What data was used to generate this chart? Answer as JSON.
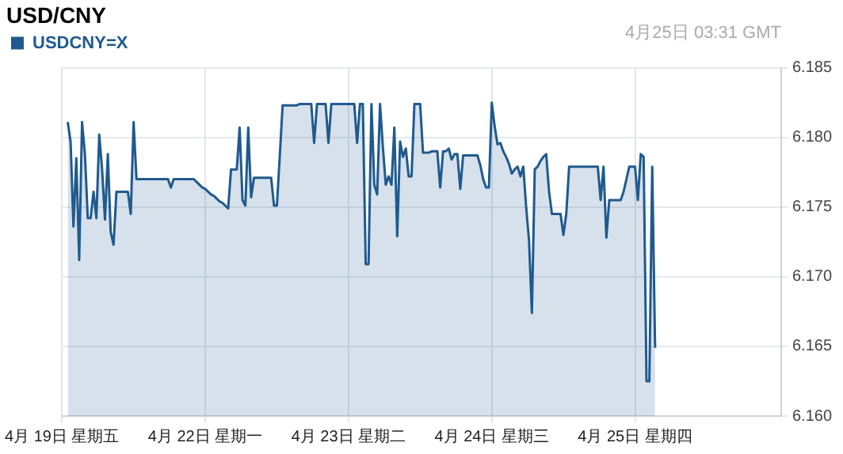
{
  "chart_data": {
    "type": "area",
    "title": "USD/CNY",
    "annotations": [
      "4月25日 03:31 GMT"
    ],
    "categories": [
      "4月 19日 星期五",
      null,
      null,
      null,
      null,
      null,
      null,
      null,
      null,
      null,
      null,
      null,
      null,
      null,
      null,
      null,
      null,
      null,
      null,
      null,
      null,
      null,
      null,
      null,
      null,
      null,
      null,
      null,
      null,
      null,
      null,
      null,
      null,
      null,
      null,
      null,
      null,
      null,
      null,
      null,
      null,
      null,
      null,
      null,
      null,
      null,
      null,
      null,
      null,
      null,
      "4月 22日 星期一",
      null,
      null,
      null,
      null,
      null,
      null,
      null,
      null,
      null,
      null,
      null,
      null,
      null,
      null,
      null,
      null,
      null,
      null,
      null,
      null,
      null,
      null,
      null,
      null,
      null,
      null,
      null,
      null,
      null,
      null,
      null,
      null,
      null,
      null,
      null,
      null,
      null,
      null,
      null,
      null,
      null,
      null,
      null,
      null,
      null,
      null,
      null,
      null,
      null,
      "4月 23日 星期二",
      null,
      null,
      null,
      null,
      null,
      null,
      null,
      null,
      null,
      null,
      null,
      null,
      null,
      null,
      null,
      null,
      null,
      null,
      null,
      null,
      null,
      null,
      null,
      null,
      null,
      null,
      null,
      null,
      null,
      null,
      null,
      null,
      null,
      null,
      null,
      null,
      null,
      null,
      null,
      null,
      null,
      null,
      null,
      null,
      null,
      null,
      null,
      null,
      null,
      "4月 24日 星期三",
      null,
      null,
      null,
      null,
      null,
      null,
      null,
      null,
      null,
      null,
      null,
      null,
      null,
      null,
      null,
      null,
      null,
      null,
      null,
      null,
      null,
      null,
      null,
      null,
      null,
      null,
      null,
      null,
      null,
      null,
      null,
      null,
      null,
      null,
      null,
      null,
      null,
      null,
      null,
      null,
      null,
      null,
      null,
      null,
      null,
      null,
      null,
      null,
      null,
      "4月 25日 星期四",
      null,
      null,
      null,
      null,
      null,
      null,
      null,
      null,
      null,
      null,
      null,
      null,
      null,
      null,
      null,
      null,
      null,
      null,
      null,
      null,
      null,
      null,
      null,
      null,
      null,
      null,
      null,
      null,
      null,
      null,
      null,
      null,
      null,
      null,
      null,
      null,
      null,
      null,
      null,
      null,
      null,
      null,
      null,
      null,
      null,
      null,
      null,
      null,
      null,
      null,
      null
    ],
    "ylim": [
      6.16,
      6.185
    ],
    "yticks": [
      {
        "value": 6.16,
        "label": "6.160"
      },
      {
        "value": 6.165,
        "label": "6.165"
      },
      {
        "value": 6.17,
        "label": "6.170"
      },
      {
        "value": 6.175,
        "label": "6.175"
      },
      {
        "value": 6.18,
        "label": "6.180"
      },
      {
        "value": 6.185,
        "label": "6.185"
      }
    ],
    "grid": true,
    "legend": "top left",
    "series": [
      {
        "name": "USDCNY=X",
        "color": "#1f5a8f",
        "values": [
          null,
          null,
          6.1811,
          6.1797,
          6.1736,
          6.1785,
          6.1712,
          6.1811,
          6.1788,
          6.1742,
          6.1742,
          6.1761,
          6.1742,
          6.1802,
          6.1777,
          6.1741,
          6.1788,
          6.1732,
          6.1723,
          6.1761,
          6.1761,
          6.1761,
          6.1761,
          6.1761,
          6.1745,
          6.1811,
          6.177,
          6.177,
          6.177,
          6.177,
          6.177,
          6.177,
          6.177,
          6.177,
          6.177,
          6.177,
          6.177,
          6.177,
          6.1764,
          6.177,
          6.177,
          6.177,
          6.177,
          6.177,
          6.177,
          6.177,
          6.177,
          6.1768,
          6.1766,
          6.1764,
          6.1763,
          6.1761,
          6.1759,
          6.1758,
          6.1756,
          6.1754,
          6.1753,
          6.1751,
          6.1749,
          6.1777,
          6.1777,
          6.1777,
          6.1807,
          6.1755,
          6.1751,
          6.1807,
          6.1757,
          6.1771,
          6.1771,
          6.1771,
          6.1771,
          6.1771,
          6.1771,
          6.1771,
          6.1751,
          6.1751,
          6.1786,
          6.1823,
          6.1823,
          6.1823,
          6.1823,
          6.1823,
          6.1823,
          6.1824,
          6.1824,
          6.1824,
          6.1824,
          6.1824,
          6.1796,
          6.1824,
          6.1824,
          6.1824,
          6.1824,
          6.1796,
          6.1824,
          6.1824,
          6.1824,
          6.1824,
          6.1824,
          6.1824,
          6.1824,
          6.1824,
          6.1824,
          6.1796,
          6.1824,
          6.1824,
          6.1709,
          6.1709,
          6.1824,
          6.1766,
          6.1759,
          6.1824,
          6.1793,
          6.1766,
          6.1772,
          6.1766,
          6.1807,
          6.1729,
          6.1797,
          6.1786,
          6.1792,
          6.1772,
          6.1772,
          6.1824,
          6.1824,
          6.1824,
          6.1789,
          6.1789,
          6.1789,
          6.179,
          6.179,
          6.179,
          6.1764,
          6.179,
          6.179,
          6.1792,
          6.1784,
          6.1788,
          6.1788,
          6.1763,
          6.1787,
          6.1787,
          6.1787,
          6.1787,
          6.1787,
          6.1787,
          6.178,
          6.177,
          6.1764,
          6.1764,
          6.1825,
          6.1808,
          6.1795,
          6.1796,
          6.179,
          6.1786,
          6.1781,
          6.1774,
          6.1777,
          6.1779,
          6.1772,
          6.1779,
          6.175,
          6.1726,
          6.1674,
          6.1777,
          6.1779,
          6.1783,
          6.1786,
          6.1788,
          6.1761,
          6.1745,
          6.1745,
          6.1745,
          6.1745,
          6.173,
          6.1745,
          6.1779,
          6.1779,
          6.1779,
          6.1779,
          6.1779,
          6.1779,
          6.1779,
          6.1779,
          6.1779,
          6.1779,
          6.1779,
          6.1755,
          6.1779,
          6.1728,
          6.1755,
          6.1755,
          6.1755,
          6.1755,
          6.1755,
          6.1761,
          6.177,
          6.1779,
          6.1779,
          6.1779,
          6.1755,
          6.1788,
          6.1786,
          6.1625,
          6.1625,
          6.1779,
          6.1649,
          null,
          null,
          null,
          null,
          null,
          null,
          null,
          null,
          null,
          null,
          null,
          null,
          null,
          null,
          null,
          null,
          null,
          null,
          null,
          null,
          null,
          null,
          null,
          null,
          null,
          null,
          null,
          null,
          null,
          null,
          null,
          null,
          null,
          null,
          null,
          null,
          null,
          null,
          null,
          null,
          null,
          null,
          null,
          null
        ]
      }
    ]
  }
}
